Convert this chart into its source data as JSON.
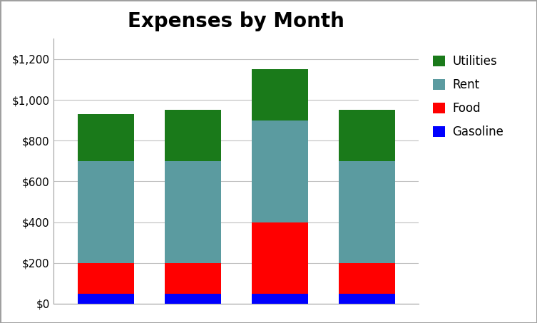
{
  "title": "Expenses by Month",
  "categories": [
    "",
    "",
    "",
    ""
  ],
  "series": [
    {
      "label": "Gasoline",
      "values": [
        50,
        50,
        50,
        50
      ],
      "color": "#0000FF"
    },
    {
      "label": "Food",
      "values": [
        150,
        150,
        350,
        150
      ],
      "color": "#FF0000"
    },
    {
      "label": "Rent",
      "values": [
        500,
        500,
        500,
        500
      ],
      "color": "#5B9BA0"
    },
    {
      "label": "Utilities",
      "values": [
        230,
        250,
        250,
        250
      ],
      "color": "#1A7A1A"
    }
  ],
  "ylim": [
    0,
    1300
  ],
  "yticks": [
    0,
    200,
    400,
    600,
    800,
    1000,
    1200
  ],
  "bar_width": 0.65,
  "legend_order": [
    3,
    2,
    1,
    0
  ],
  "background_color": "#ffffff",
  "title_fontsize": 20,
  "title_fontweight": "bold",
  "grid_color": "#c0c0c0",
  "outer_border_color": "#a0a0a0",
  "tick_fontsize": 11
}
